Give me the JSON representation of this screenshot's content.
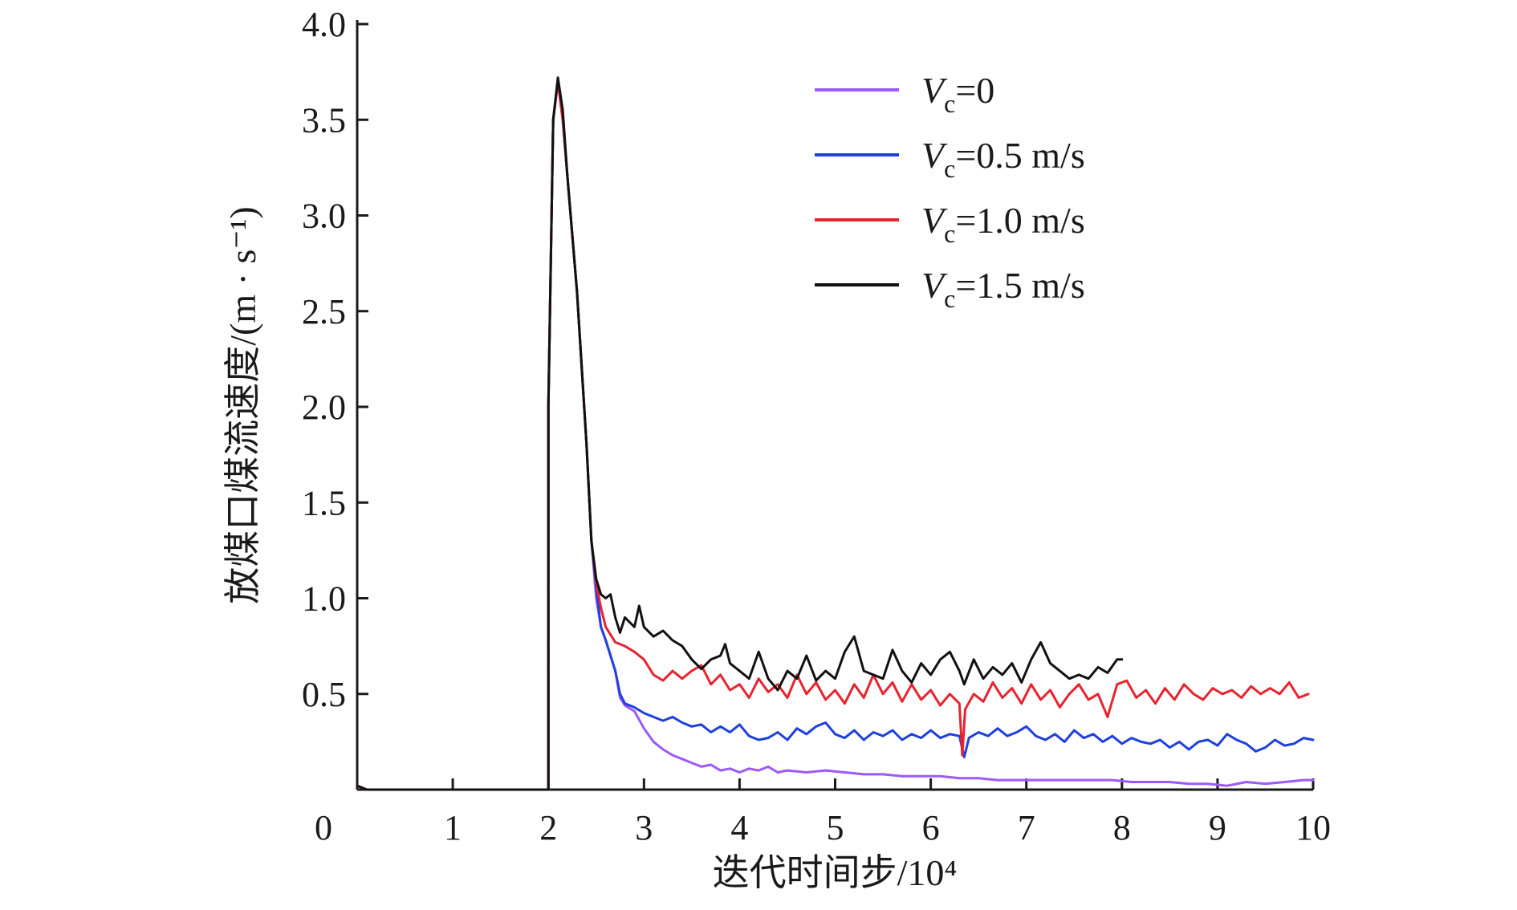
{
  "chart_data": {
    "type": "line",
    "title": "",
    "xlabel": "迭代时间步/10⁴",
    "ylabel": "放煤口煤流速度/(m · s⁻¹)",
    "xlim": [
      0,
      10
    ],
    "ylim": [
      0,
      4.0
    ],
    "x_ticks": [
      "0",
      "1",
      "2",
      "3",
      "4",
      "5",
      "6",
      "7",
      "8",
      "9",
      "10"
    ],
    "y_ticks": [
      "0.5",
      "1.0",
      "1.5",
      "2.0",
      "2.5",
      "3.0",
      "3.5",
      "4.0"
    ],
    "grid": false,
    "legend_position": "top-right",
    "series": [
      {
        "name": "Vc=0",
        "legend_var": "V",
        "legend_sub": "c",
        "legend_rest": "=0",
        "color": "#9b59ff",
        "points": [
          [
            0,
            0.02
          ],
          [
            0.1,
            0.0
          ],
          [
            2.0,
            0.0
          ],
          [
            2.0,
            2.0
          ],
          [
            2.05,
            3.5
          ],
          [
            2.1,
            3.7
          ],
          [
            2.15,
            3.5
          ],
          [
            2.2,
            3.2
          ],
          [
            2.3,
            2.6
          ],
          [
            2.4,
            1.8
          ],
          [
            2.45,
            1.3
          ],
          [
            2.5,
            1.0
          ],
          [
            2.55,
            0.85
          ],
          [
            2.6,
            0.78
          ],
          [
            2.7,
            0.62
          ],
          [
            2.75,
            0.48
          ],
          [
            2.8,
            0.44
          ],
          [
            2.9,
            0.41
          ],
          [
            3.0,
            0.32
          ],
          [
            3.1,
            0.25
          ],
          [
            3.2,
            0.21
          ],
          [
            3.3,
            0.18
          ],
          [
            3.4,
            0.16
          ],
          [
            3.5,
            0.14
          ],
          [
            3.6,
            0.12
          ],
          [
            3.7,
            0.13
          ],
          [
            3.8,
            0.1
          ],
          [
            3.9,
            0.11
          ],
          [
            4.0,
            0.09
          ],
          [
            4.1,
            0.11
          ],
          [
            4.2,
            0.1
          ],
          [
            4.3,
            0.12
          ],
          [
            4.4,
            0.09
          ],
          [
            4.5,
            0.1
          ],
          [
            4.7,
            0.09
          ],
          [
            4.9,
            0.1
          ],
          [
            5.1,
            0.09
          ],
          [
            5.3,
            0.08
          ],
          [
            5.5,
            0.08
          ],
          [
            5.7,
            0.07
          ],
          [
            5.9,
            0.07
          ],
          [
            6.1,
            0.07
          ],
          [
            6.3,
            0.06
          ],
          [
            6.5,
            0.06
          ],
          [
            6.7,
            0.05
          ],
          [
            6.9,
            0.05
          ],
          [
            7.1,
            0.05
          ],
          [
            7.3,
            0.05
          ],
          [
            7.5,
            0.05
          ],
          [
            7.7,
            0.05
          ],
          [
            7.9,
            0.05
          ],
          [
            8.1,
            0.04
          ],
          [
            8.3,
            0.04
          ],
          [
            8.5,
            0.04
          ],
          [
            8.7,
            0.03
          ],
          [
            8.9,
            0.03
          ],
          [
            9.1,
            0.02
          ],
          [
            9.3,
            0.04
          ],
          [
            9.5,
            0.03
          ],
          [
            9.7,
            0.04
          ],
          [
            9.9,
            0.05
          ],
          [
            10.0,
            0.05
          ]
        ]
      },
      {
        "name": "Vc=0.5 m/s",
        "legend_var": "V",
        "legend_sub": "c",
        "legend_rest": "=0.5 m/s",
        "color": "#1f3fe0",
        "points": [
          [
            0,
            0.02
          ],
          [
            0.1,
            0.0
          ],
          [
            2.0,
            0.0
          ],
          [
            2.0,
            2.0
          ],
          [
            2.05,
            3.5
          ],
          [
            2.1,
            3.7
          ],
          [
            2.15,
            3.5
          ],
          [
            2.2,
            3.2
          ],
          [
            2.3,
            2.6
          ],
          [
            2.4,
            1.8
          ],
          [
            2.45,
            1.3
          ],
          [
            2.5,
            1.05
          ],
          [
            2.55,
            0.85
          ],
          [
            2.6,
            0.78
          ],
          [
            2.7,
            0.62
          ],
          [
            2.75,
            0.5
          ],
          [
            2.8,
            0.45
          ],
          [
            2.9,
            0.43
          ],
          [
            3.0,
            0.4
          ],
          [
            3.1,
            0.38
          ],
          [
            3.2,
            0.36
          ],
          [
            3.3,
            0.38
          ],
          [
            3.4,
            0.35
          ],
          [
            3.5,
            0.33
          ],
          [
            3.6,
            0.34
          ],
          [
            3.7,
            0.3
          ],
          [
            3.8,
            0.33
          ],
          [
            3.9,
            0.3
          ],
          [
            4.0,
            0.34
          ],
          [
            4.1,
            0.28
          ],
          [
            4.2,
            0.26
          ],
          [
            4.3,
            0.27
          ],
          [
            4.4,
            0.3
          ],
          [
            4.5,
            0.26
          ],
          [
            4.6,
            0.32
          ],
          [
            4.7,
            0.29
          ],
          [
            4.8,
            0.33
          ],
          [
            4.9,
            0.35
          ],
          [
            5.0,
            0.29
          ],
          [
            5.1,
            0.27
          ],
          [
            5.2,
            0.31
          ],
          [
            5.3,
            0.26
          ],
          [
            5.4,
            0.3
          ],
          [
            5.5,
            0.28
          ],
          [
            5.6,
            0.31
          ],
          [
            5.7,
            0.26
          ],
          [
            5.8,
            0.29
          ],
          [
            5.9,
            0.27
          ],
          [
            6.0,
            0.31
          ],
          [
            6.1,
            0.27
          ],
          [
            6.2,
            0.29
          ],
          [
            6.3,
            0.28
          ],
          [
            6.35,
            0.17
          ],
          [
            6.4,
            0.27
          ],
          [
            6.5,
            0.3
          ],
          [
            6.6,
            0.28
          ],
          [
            6.7,
            0.32
          ],
          [
            6.8,
            0.28
          ],
          [
            6.9,
            0.3
          ],
          [
            7.0,
            0.33
          ],
          [
            7.1,
            0.28
          ],
          [
            7.2,
            0.26
          ],
          [
            7.3,
            0.29
          ],
          [
            7.4,
            0.25
          ],
          [
            7.5,
            0.31
          ],
          [
            7.6,
            0.27
          ],
          [
            7.7,
            0.29
          ],
          [
            7.8,
            0.25
          ],
          [
            7.9,
            0.28
          ],
          [
            8.0,
            0.24
          ],
          [
            8.1,
            0.27
          ],
          [
            8.2,
            0.25
          ],
          [
            8.3,
            0.24
          ],
          [
            8.4,
            0.26
          ],
          [
            8.5,
            0.22
          ],
          [
            8.6,
            0.25
          ],
          [
            8.7,
            0.21
          ],
          [
            8.8,
            0.25
          ],
          [
            8.9,
            0.26
          ],
          [
            9.0,
            0.23
          ],
          [
            9.1,
            0.29
          ],
          [
            9.2,
            0.26
          ],
          [
            9.3,
            0.24
          ],
          [
            9.4,
            0.2
          ],
          [
            9.5,
            0.22
          ],
          [
            9.6,
            0.26
          ],
          [
            9.7,
            0.23
          ],
          [
            9.8,
            0.24
          ],
          [
            9.9,
            0.27
          ],
          [
            10.0,
            0.26
          ]
        ]
      },
      {
        "name": "Vc=1.0 m/s",
        "legend_var": "V",
        "legend_sub": "c",
        "legend_rest": "=1.0 m/s",
        "color": "#e8232e",
        "points": [
          [
            0,
            0.02
          ],
          [
            0.1,
            0.0
          ],
          [
            2.0,
            0.0
          ],
          [
            2.0,
            2.0
          ],
          [
            2.05,
            3.5
          ],
          [
            2.1,
            3.7
          ],
          [
            2.15,
            3.5
          ],
          [
            2.2,
            3.2
          ],
          [
            2.3,
            2.6
          ],
          [
            2.4,
            1.8
          ],
          [
            2.45,
            1.3
          ],
          [
            2.5,
            1.08
          ],
          [
            2.55,
            0.95
          ],
          [
            2.6,
            0.85
          ],
          [
            2.7,
            0.77
          ],
          [
            2.8,
            0.75
          ],
          [
            2.9,
            0.72
          ],
          [
            3.0,
            0.68
          ],
          [
            3.1,
            0.6
          ],
          [
            3.2,
            0.57
          ],
          [
            3.3,
            0.62
          ],
          [
            3.4,
            0.58
          ],
          [
            3.5,
            0.62
          ],
          [
            3.6,
            0.65
          ],
          [
            3.7,
            0.55
          ],
          [
            3.8,
            0.6
          ],
          [
            3.9,
            0.52
          ],
          [
            4.0,
            0.55
          ],
          [
            4.1,
            0.48
          ],
          [
            4.2,
            0.58
          ],
          [
            4.3,
            0.51
          ],
          [
            4.4,
            0.55
          ],
          [
            4.5,
            0.48
          ],
          [
            4.6,
            0.6
          ],
          [
            4.7,
            0.5
          ],
          [
            4.8,
            0.56
          ],
          [
            4.9,
            0.47
          ],
          [
            5.0,
            0.52
          ],
          [
            5.1,
            0.45
          ],
          [
            5.2,
            0.55
          ],
          [
            5.3,
            0.48
          ],
          [
            5.4,
            0.6
          ],
          [
            5.5,
            0.5
          ],
          [
            5.6,
            0.56
          ],
          [
            5.7,
            0.46
          ],
          [
            5.8,
            0.55
          ],
          [
            5.9,
            0.47
          ],
          [
            6.0,
            0.52
          ],
          [
            6.1,
            0.44
          ],
          [
            6.2,
            0.5
          ],
          [
            6.3,
            0.45
          ],
          [
            6.33,
            0.18
          ],
          [
            6.36,
            0.42
          ],
          [
            6.45,
            0.5
          ],
          [
            6.55,
            0.46
          ],
          [
            6.65,
            0.56
          ],
          [
            6.75,
            0.48
          ],
          [
            6.85,
            0.53
          ],
          [
            6.95,
            0.45
          ],
          [
            7.05,
            0.55
          ],
          [
            7.15,
            0.47
          ],
          [
            7.25,
            0.52
          ],
          [
            7.35,
            0.43
          ],
          [
            7.45,
            0.5
          ],
          [
            7.55,
            0.55
          ],
          [
            7.65,
            0.47
          ],
          [
            7.75,
            0.5
          ],
          [
            7.85,
            0.38
          ],
          [
            7.95,
            0.55
          ],
          [
            8.05,
            0.57
          ],
          [
            8.15,
            0.48
          ],
          [
            8.25,
            0.52
          ],
          [
            8.35,
            0.45
          ],
          [
            8.45,
            0.53
          ],
          [
            8.55,
            0.47
          ],
          [
            8.65,
            0.55
          ],
          [
            8.75,
            0.5
          ],
          [
            8.85,
            0.47
          ],
          [
            8.95,
            0.53
          ],
          [
            9.05,
            0.5
          ],
          [
            9.15,
            0.52
          ],
          [
            9.25,
            0.48
          ],
          [
            9.35,
            0.54
          ],
          [
            9.45,
            0.5
          ],
          [
            9.55,
            0.53
          ],
          [
            9.65,
            0.5
          ],
          [
            9.75,
            0.56
          ],
          [
            9.85,
            0.48
          ],
          [
            9.95,
            0.5
          ]
        ]
      },
      {
        "name": "Vc=1.5 m/s",
        "legend_var": "V",
        "legend_sub": "c",
        "legend_rest": "=1.5 m/s",
        "color": "#111111",
        "points": [
          [
            0,
            0.02
          ],
          [
            0.1,
            0.0
          ],
          [
            2.0,
            0.0
          ],
          [
            2.0,
            2.0
          ],
          [
            2.05,
            3.5
          ],
          [
            2.1,
            3.72
          ],
          [
            2.15,
            3.55
          ],
          [
            2.2,
            3.2
          ],
          [
            2.3,
            2.6
          ],
          [
            2.4,
            1.8
          ],
          [
            2.45,
            1.3
          ],
          [
            2.5,
            1.1
          ],
          [
            2.55,
            1.02
          ],
          [
            2.6,
            1.0
          ],
          [
            2.65,
            1.02
          ],
          [
            2.7,
            0.9
          ],
          [
            2.75,
            0.82
          ],
          [
            2.8,
            0.9
          ],
          [
            2.9,
            0.85
          ],
          [
            2.95,
            0.96
          ],
          [
            3.0,
            0.85
          ],
          [
            3.1,
            0.8
          ],
          [
            3.2,
            0.83
          ],
          [
            3.3,
            0.78
          ],
          [
            3.4,
            0.75
          ],
          [
            3.5,
            0.68
          ],
          [
            3.6,
            0.63
          ],
          [
            3.7,
            0.68
          ],
          [
            3.8,
            0.7
          ],
          [
            3.85,
            0.76
          ],
          [
            3.9,
            0.66
          ],
          [
            4.0,
            0.62
          ],
          [
            4.1,
            0.58
          ],
          [
            4.2,
            0.72
          ],
          [
            4.3,
            0.58
          ],
          [
            4.4,
            0.52
          ],
          [
            4.5,
            0.62
          ],
          [
            4.6,
            0.58
          ],
          [
            4.7,
            0.7
          ],
          [
            4.8,
            0.57
          ],
          [
            4.9,
            0.62
          ],
          [
            5.0,
            0.58
          ],
          [
            5.1,
            0.72
          ],
          [
            5.2,
            0.8
          ],
          [
            5.3,
            0.62
          ],
          [
            5.4,
            0.6
          ],
          [
            5.5,
            0.58
          ],
          [
            5.6,
            0.73
          ],
          [
            5.7,
            0.62
          ],
          [
            5.8,
            0.56
          ],
          [
            5.9,
            0.66
          ],
          [
            6.0,
            0.6
          ],
          [
            6.1,
            0.68
          ],
          [
            6.2,
            0.72
          ],
          [
            6.3,
            0.62
          ],
          [
            6.35,
            0.55
          ],
          [
            6.45,
            0.68
          ],
          [
            6.55,
            0.58
          ],
          [
            6.65,
            0.64
          ],
          [
            6.75,
            0.6
          ],
          [
            6.85,
            0.66
          ],
          [
            6.95,
            0.56
          ],
          [
            7.05,
            0.68
          ],
          [
            7.15,
            0.77
          ],
          [
            7.25,
            0.66
          ],
          [
            7.35,
            0.62
          ],
          [
            7.45,
            0.58
          ],
          [
            7.55,
            0.6
          ],
          [
            7.65,
            0.58
          ],
          [
            7.75,
            0.64
          ],
          [
            7.85,
            0.61
          ],
          [
            7.95,
            0.68
          ],
          [
            8.0,
            0.68
          ]
        ]
      }
    ]
  }
}
